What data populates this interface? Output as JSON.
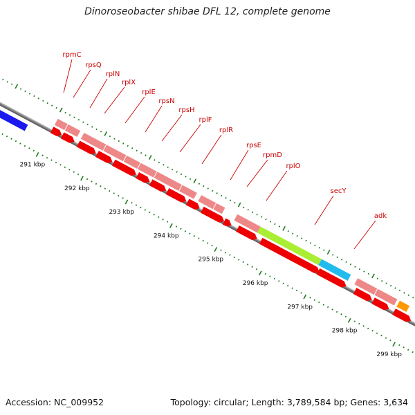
{
  "title": "Dinoroseobacter shibae DFL 12, complete genome",
  "footer": {
    "accession": "Accession: NC_009952",
    "summary": "Topology: circular; Length: 3,789,584 bp; Genes: 3,634"
  },
  "ticks": [
    {
      "label": "291 kbp",
      "kbp": 291
    },
    {
      "label": "292 kbp",
      "kbp": 292
    },
    {
      "label": "293 kbp",
      "kbp": 293
    },
    {
      "label": "294 kbp",
      "kbp": 294
    },
    {
      "label": "295 kbp",
      "kbp": 295
    },
    {
      "label": "296 kbp",
      "kbp": 296
    },
    {
      "label": "297 kbp",
      "kbp": 297
    },
    {
      "label": "298 kbp",
      "kbp": 298
    },
    {
      "label": "299 kbp",
      "kbp": 299
    }
  ],
  "gene_labels": [
    "rpmC",
    "rpsQ",
    "rplN",
    "rplX",
    "rplE",
    "rpsN",
    "rpsH",
    "rplF",
    "rplR",
    "rpsE",
    "rpmD",
    "rplO",
    "secY",
    "adk"
  ],
  "colors": {
    "backbone": "#888888",
    "tick": "#1e7a1e",
    "label_red": "#cc0000",
    "gene_red": "#ee0000",
    "gene_pink": "#ee8888",
    "secY": "#aaee33",
    "adk": "#22bbee",
    "other_blue": "#1a1aee",
    "other_orange": "#ff9900"
  }
}
